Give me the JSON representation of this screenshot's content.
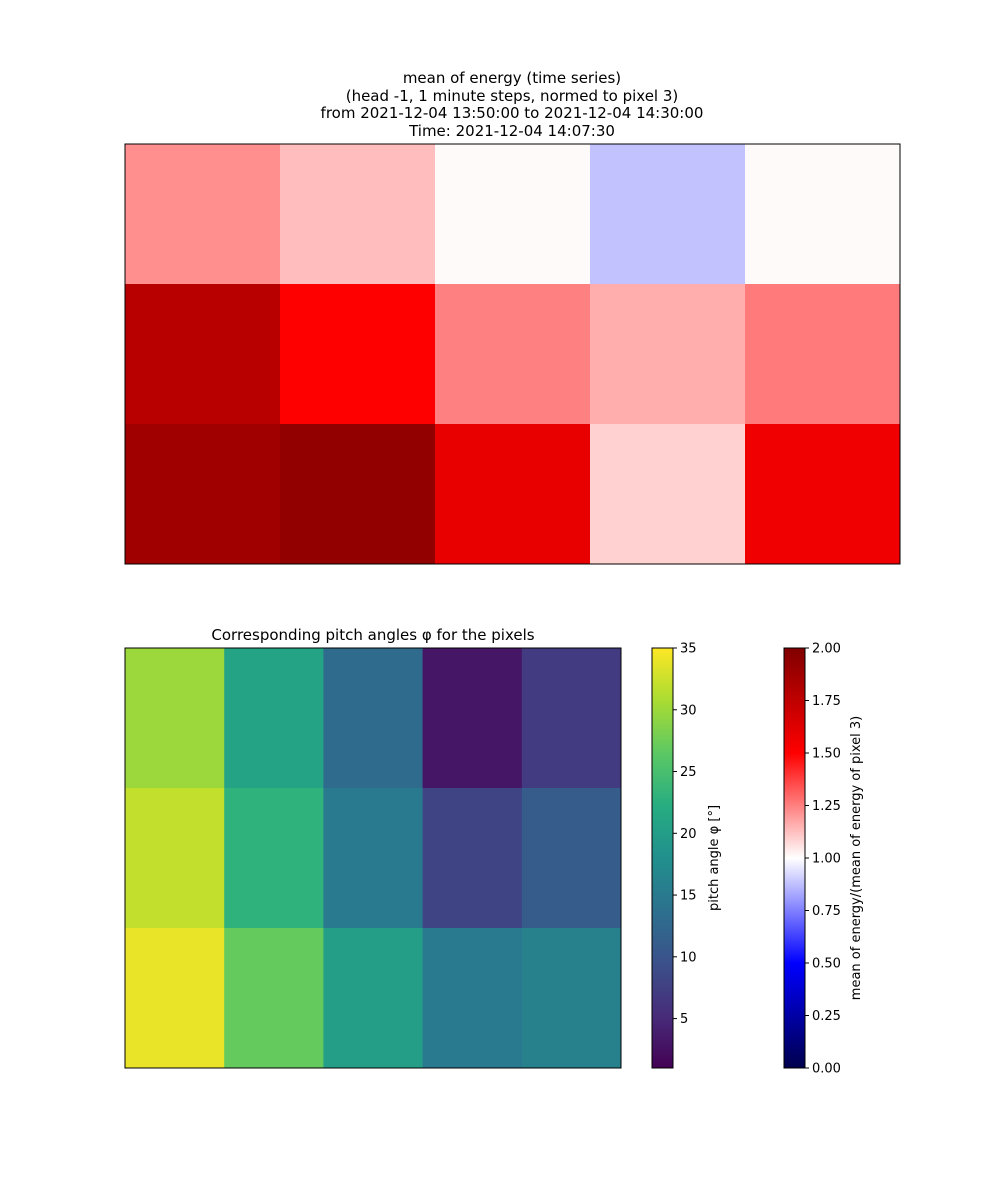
{
  "chart_data": [
    {
      "type": "heatmap",
      "title_lines": [
        "mean of energy (time series)",
        "(head -1, 1 minute steps, normed to pixel 3)",
        "from 2021-12-04 13:50:00 to 2021-12-04 14:30:00",
        "Time: 2021-12-04 14:07:30"
      ],
      "grid": false,
      "colormap": "seismic",
      "vmin": 0,
      "vmax": 2,
      "values": [
        [
          1.22,
          1.13,
          1.01,
          0.88,
          1.01
        ],
        [
          1.78,
          1.5,
          1.25,
          1.16,
          1.26
        ],
        [
          1.87,
          1.93,
          1.59,
          1.09,
          1.56
        ]
      ]
    },
    {
      "type": "heatmap",
      "title": "Corresponding pitch angles φ for the pixels",
      "grid": false,
      "colormap": "viridis",
      "vmin": 1,
      "vmax": 35,
      "values": [
        [
          30,
          21,
          13,
          3,
          7
        ],
        [
          32,
          23,
          15,
          8,
          11
        ],
        [
          34,
          27,
          20,
          15,
          16
        ]
      ]
    }
  ],
  "colorbars": {
    "pitch": {
      "label": "pitch angle φ [°]",
      "range": [
        1,
        35
      ],
      "ticks": [
        "5",
        "10",
        "15",
        "20",
        "25",
        "30",
        "35"
      ]
    },
    "energy": {
      "label": "mean of energy/(mean of energy of pixel 3)",
      "range": [
        0,
        2
      ],
      "ticks": [
        "0.00",
        "0.25",
        "0.50",
        "0.75",
        "1.00",
        "1.25",
        "1.50",
        "1.75",
        "2.00"
      ]
    }
  }
}
